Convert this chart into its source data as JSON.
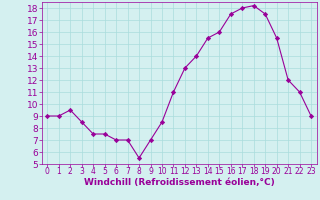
{
  "hours": [
    0,
    1,
    2,
    3,
    4,
    5,
    6,
    7,
    8,
    9,
    10,
    11,
    12,
    13,
    14,
    15,
    16,
    17,
    18,
    19,
    20,
    21,
    22,
    23
  ],
  "values": [
    9.0,
    9.0,
    9.5,
    8.5,
    7.5,
    7.5,
    7.0,
    7.0,
    5.5,
    7.0,
    8.5,
    11.0,
    13.0,
    14.0,
    15.5,
    16.0,
    17.5,
    18.0,
    18.2,
    17.5,
    15.5,
    12.0,
    11.0,
    9.0
  ],
  "line_color": "#990099",
  "marker": "D",
  "marker_size": 2.2,
  "bg_color": "#d4f0f0",
  "grid_color": "#aadddd",
  "xlabel": "Windchill (Refroidissement éolien,°C)",
  "xlabel_color": "#990099",
  "tick_color": "#990099",
  "ylim": [
    5,
    18.5
  ],
  "yticks": [
    5,
    6,
    7,
    8,
    9,
    10,
    11,
    12,
    13,
    14,
    15,
    16,
    17,
    18
  ],
  "xlim": [
    -0.5,
    23.5
  ],
  "xticks": [
    0,
    1,
    2,
    3,
    4,
    5,
    6,
    7,
    8,
    9,
    10,
    11,
    12,
    13,
    14,
    15,
    16,
    17,
    18,
    19,
    20,
    21,
    22,
    23
  ],
  "ytick_fontsize": 6.5,
  "xtick_fontsize": 5.5,
  "xlabel_fontsize": 6.5
}
